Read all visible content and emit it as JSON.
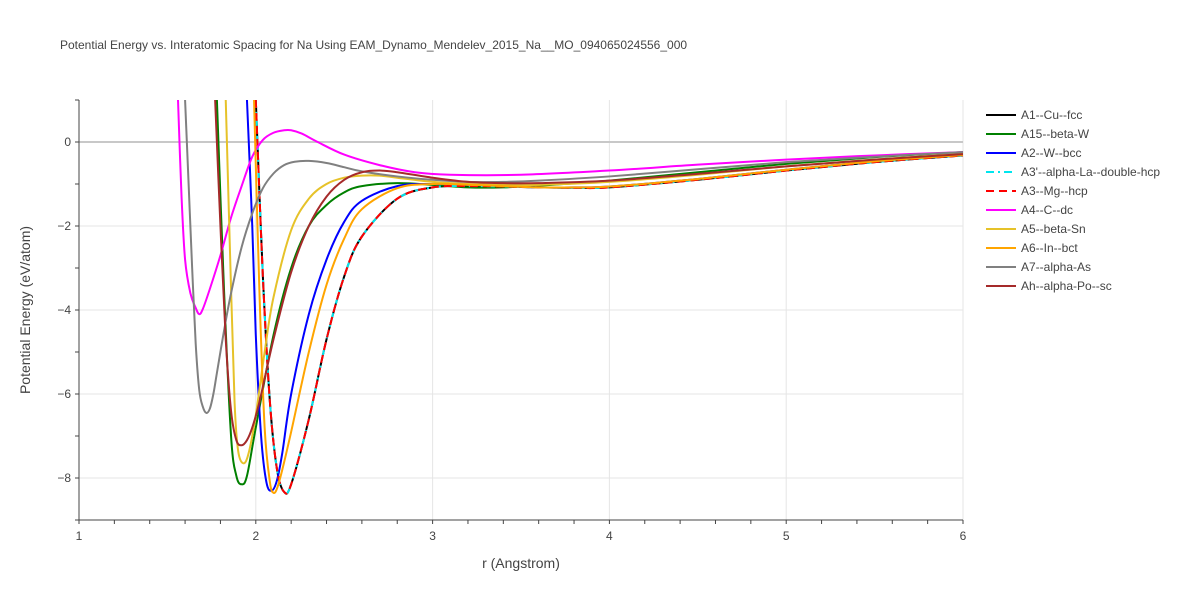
{
  "chart_data": {
    "type": "line",
    "title": "Potential Energy vs. Interatomic Spacing for Na Using EAM_Dynamo_Mendelev_2015_Na__MO_094065024556_000",
    "xlabel": "r (Angstrom)",
    "ylabel": "Potential Energy (eV/atom)",
    "xlim": [
      1,
      6
    ],
    "ylim": [
      -9,
      1
    ],
    "xticks": [
      1,
      2,
      3,
      4,
      5,
      6
    ],
    "yticks": [
      0,
      -2,
      -4,
      -6,
      -8
    ],
    "ytick_labels": [
      "0",
      "−2",
      "−4",
      "−6",
      "−8"
    ],
    "grid": true,
    "legend_position": "right",
    "series": [
      {
        "name": "A1--Cu--fcc",
        "color": "#000000",
        "dash": "solid",
        "x": [
          2.0,
          2.04,
          2.08,
          2.12,
          2.16,
          2.2,
          2.3,
          2.4,
          2.5,
          2.6,
          2.8,
          3.0,
          3.2,
          3.4,
          3.6,
          3.8,
          4.0,
          4.5,
          5.0,
          5.5,
          6.0
        ],
        "y": [
          1.0,
          -3.2,
          -6.2,
          -7.8,
          -8.33,
          -8.15,
          -6.6,
          -4.7,
          -3.2,
          -2.25,
          -1.35,
          -1.08,
          -1.05,
          -1.06,
          -1.08,
          -1.09,
          -1.08,
          -0.9,
          -0.68,
          -0.48,
          -0.32
        ]
      },
      {
        "name": "A15--beta-W",
        "color": "#008000",
        "dash": "solid",
        "x": [
          1.78,
          1.82,
          1.86,
          1.89,
          1.92,
          1.95,
          2.0,
          2.1,
          2.2,
          2.3,
          2.4,
          2.5,
          2.6,
          2.8,
          3.0,
          3.2,
          3.4,
          3.6,
          4.0,
          4.5,
          5.0,
          5.5,
          6.0
        ],
        "y": [
          1.0,
          -3.5,
          -7.0,
          -7.95,
          -8.15,
          -7.95,
          -6.8,
          -4.6,
          -3.0,
          -2.0,
          -1.5,
          -1.2,
          -1.05,
          -0.98,
          -1.02,
          -1.08,
          -1.08,
          -1.04,
          -0.92,
          -0.72,
          -0.52,
          -0.36,
          -0.24
        ]
      },
      {
        "name": "A2--W--bcc",
        "color": "#0000ff",
        "dash": "solid",
        "x": [
          1.95,
          1.98,
          2.0,
          2.03,
          2.06,
          2.09,
          2.12,
          2.15,
          2.2,
          2.3,
          2.4,
          2.5,
          2.6,
          2.8,
          3.0,
          3.2,
          3.4,
          3.6,
          3.8,
          4.0,
          4.5,
          5.0,
          5.5,
          6.0
        ],
        "y": [
          1.0,
          -2.0,
          -4.6,
          -7.0,
          -8.1,
          -8.3,
          -8.05,
          -7.4,
          -6.0,
          -4.1,
          -2.8,
          -1.9,
          -1.4,
          -1.05,
          -1.0,
          -1.02,
          -1.05,
          -1.08,
          -1.08,
          -1.06,
          -0.88,
          -0.66,
          -0.46,
          -0.31
        ]
      },
      {
        "name": "A3'--alpha-La--double-hcp",
        "color": "#00e5ee",
        "dash": "dashdot",
        "x": [
          2.0,
          2.04,
          2.08,
          2.12,
          2.16,
          2.2,
          2.3,
          2.4,
          2.5,
          2.6,
          2.8,
          3.0,
          3.2,
          3.4,
          3.6,
          3.8,
          4.0,
          4.5,
          5.0,
          5.5,
          6.0
        ],
        "y": [
          1.0,
          -3.2,
          -6.2,
          -7.8,
          -8.33,
          -8.15,
          -6.6,
          -4.7,
          -3.2,
          -2.25,
          -1.35,
          -1.08,
          -1.05,
          -1.06,
          -1.08,
          -1.09,
          -1.08,
          -0.9,
          -0.68,
          -0.48,
          -0.32
        ]
      },
      {
        "name": "A3--Mg--hcp",
        "color": "#ff0000",
        "dash": "dash",
        "x": [
          2.0,
          2.04,
          2.08,
          2.12,
          2.16,
          2.2,
          2.3,
          2.4,
          2.5,
          2.6,
          2.8,
          3.0,
          3.2,
          3.4,
          3.6,
          3.8,
          4.0,
          4.5,
          5.0,
          5.5,
          6.0
        ],
        "y": [
          1.0,
          -3.2,
          -6.2,
          -7.8,
          -8.33,
          -8.15,
          -6.6,
          -4.7,
          -3.2,
          -2.25,
          -1.35,
          -1.08,
          -1.05,
          -1.06,
          -1.08,
          -1.09,
          -1.08,
          -0.9,
          -0.68,
          -0.48,
          -0.32
        ]
      },
      {
        "name": "A4--C--dc",
        "color": "#ff00ff",
        "dash": "solid",
        "x": [
          1.56,
          1.58,
          1.6,
          1.63,
          1.66,
          1.68,
          1.7,
          1.74,
          1.8,
          1.86,
          1.92,
          1.98,
          2.04,
          2.1,
          2.16,
          2.2,
          2.26,
          2.35,
          2.5,
          2.7,
          2.9,
          3.1,
          3.5,
          4.0,
          4.5,
          5.0,
          5.5,
          6.0
        ],
        "y": [
          1.0,
          -1.3,
          -2.8,
          -3.6,
          -3.95,
          -4.1,
          -3.98,
          -3.5,
          -2.7,
          -1.8,
          -1.05,
          -0.35,
          0.05,
          0.22,
          0.28,
          0.28,
          0.2,
          0.0,
          -0.3,
          -0.55,
          -0.72,
          -0.78,
          -0.78,
          -0.68,
          -0.54,
          -0.42,
          -0.32,
          -0.24
        ]
      },
      {
        "name": "A5--beta-Sn",
        "color": "#e6c229",
        "dash": "solid",
        "x": [
          1.83,
          1.86,
          1.88,
          1.9,
          1.93,
          1.96,
          2.0,
          2.05,
          2.1,
          2.2,
          2.3,
          2.4,
          2.5,
          2.6,
          2.7,
          2.8,
          3.0,
          3.2,
          3.4,
          3.6,
          4.0,
          4.5,
          5.0,
          5.5,
          6.0
        ],
        "y": [
          1.0,
          -3.5,
          -6.2,
          -7.35,
          -7.65,
          -7.4,
          -6.5,
          -5.0,
          -3.7,
          -2.1,
          -1.35,
          -1.0,
          -0.85,
          -0.8,
          -0.8,
          -0.85,
          -0.95,
          -1.0,
          -1.02,
          -1.02,
          -0.95,
          -0.78,
          -0.58,
          -0.42,
          -0.28
        ]
      },
      {
        "name": "A6--In--bct",
        "color": "#ffa500",
        "dash": "solid",
        "x": [
          1.99,
          2.02,
          2.05,
          2.08,
          2.1,
          2.12,
          2.15,
          2.2,
          2.3,
          2.4,
          2.5,
          2.6,
          2.8,
          3.0,
          3.2,
          3.4,
          3.6,
          3.8,
          4.0,
          4.5,
          5.0,
          5.5,
          6.0
        ],
        "y": [
          1.0,
          -3.5,
          -6.8,
          -8.1,
          -8.35,
          -8.25,
          -7.8,
          -6.9,
          -5.0,
          -3.4,
          -2.3,
          -1.6,
          -1.1,
          -1.0,
          -1.02,
          -1.05,
          -1.08,
          -1.08,
          -1.06,
          -0.88,
          -0.66,
          -0.46,
          -0.31
        ]
      },
      {
        "name": "A7--alpha-As",
        "color": "#808080",
        "dash": "solid",
        "x": [
          1.6,
          1.62,
          1.64,
          1.66,
          1.68,
          1.7,
          1.72,
          1.74,
          1.76,
          1.78,
          1.82,
          1.86,
          1.92,
          1.98,
          2.04,
          2.1,
          2.16,
          2.22,
          2.3,
          2.4,
          2.5,
          2.6,
          2.8,
          3.0,
          3.2,
          3.4,
          3.6,
          4.0,
          4.5,
          5.0,
          5.5,
          6.0
        ],
        "y": [
          1.0,
          -1.0,
          -3.0,
          -4.8,
          -5.9,
          -6.3,
          -6.45,
          -6.35,
          -6.0,
          -5.5,
          -4.5,
          -3.6,
          -2.5,
          -1.7,
          -1.1,
          -0.75,
          -0.55,
          -0.47,
          -0.45,
          -0.5,
          -0.6,
          -0.7,
          -0.82,
          -0.9,
          -0.95,
          -0.95,
          -0.92,
          -0.82,
          -0.65,
          -0.48,
          -0.35,
          -0.24
        ]
      },
      {
        "name": "Ah--alpha-Po--sc",
        "color": "#a52a2a",
        "dash": "solid",
        "x": [
          1.77,
          1.8,
          1.83,
          1.86,
          1.89,
          1.92,
          1.95,
          1.98,
          2.02,
          2.1,
          2.2,
          2.3,
          2.4,
          2.5,
          2.6,
          2.7,
          2.8,
          3.0,
          3.2,
          3.4,
          3.6,
          4.0,
          4.5,
          5.0,
          5.5,
          6.0
        ],
        "y": [
          1.0,
          -2.0,
          -4.7,
          -6.4,
          -7.1,
          -7.22,
          -7.1,
          -6.8,
          -6.2,
          -4.7,
          -3.1,
          -2.0,
          -1.3,
          -0.9,
          -0.72,
          -0.68,
          -0.72,
          -0.85,
          -0.95,
          -0.98,
          -0.98,
          -0.92,
          -0.76,
          -0.58,
          -0.42,
          -0.29
        ]
      }
    ]
  }
}
